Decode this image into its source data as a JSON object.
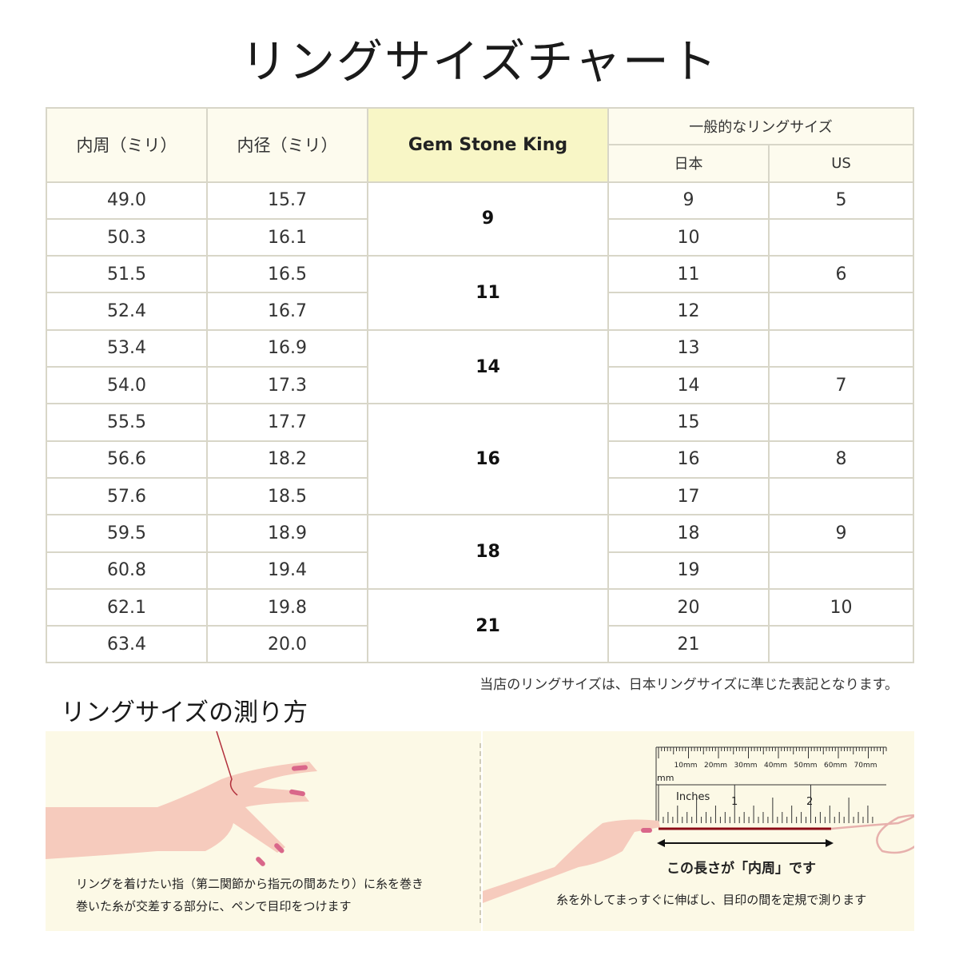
{
  "title": "リングサイズチャート",
  "table": {
    "headers": {
      "inner_circ": "内周（ミリ）",
      "inner_diam": "内径（ミリ）",
      "brand": "Gem Stone King",
      "general": "一般的なリングサイズ",
      "japan": "日本",
      "us": "US"
    },
    "rows": [
      {
        "circ": "49.0",
        "diam": "15.7",
        "jp": "9",
        "us": "5"
      },
      {
        "circ": "50.3",
        "diam": "16.1",
        "jp": "10",
        "us": ""
      },
      {
        "circ": "51.5",
        "diam": "16.5",
        "jp": "11",
        "us": "6"
      },
      {
        "circ": "52.4",
        "diam": "16.7",
        "jp": "12",
        "us": ""
      },
      {
        "circ": "53.4",
        "diam": "16.9",
        "jp": "13",
        "us": ""
      },
      {
        "circ": "54.0",
        "diam": "17.3",
        "jp": "14",
        "us": "7"
      },
      {
        "circ": "55.5",
        "diam": "17.7",
        "jp": "15",
        "us": ""
      },
      {
        "circ": "56.6",
        "diam": "18.2",
        "jp": "16",
        "us": "8"
      },
      {
        "circ": "57.6",
        "diam": "18.5",
        "jp": "17",
        "us": ""
      },
      {
        "circ": "59.5",
        "diam": "18.9",
        "jp": "18",
        "us": "9"
      },
      {
        "circ": "60.8",
        "diam": "19.4",
        "jp": "19",
        "us": ""
      },
      {
        "circ": "62.1",
        "diam": "19.8",
        "jp": "20",
        "us": "10"
      },
      {
        "circ": "63.4",
        "diam": "20.0",
        "jp": "21",
        "us": ""
      }
    ],
    "brand_groups": [
      {
        "size": "9",
        "span": 2
      },
      {
        "size": "11",
        "span": 2
      },
      {
        "size": "14",
        "span": 2
      },
      {
        "size": "16",
        "span": 3
      },
      {
        "size": "18",
        "span": 2
      },
      {
        "size": "21",
        "span": 2
      }
    ]
  },
  "note": "当店のリングサイズは、日本リングサイズに準じた表記となります。",
  "how_to": {
    "title": "リングサイズの測り方",
    "step1": [
      "リングを着けたい指（第二関節から指元の間あたり）に糸を巻き",
      "巻いた糸が交差する部分に、ペンで目印をつけます"
    ],
    "ruler": {
      "mm_labels": [
        "10mm",
        "20mm",
        "30mm",
        "40mm",
        "50mm",
        "60mm",
        "70mm"
      ],
      "mm_unit": "mm",
      "inch_unit": "Inches",
      "inch_labels": [
        "1",
        "2"
      ]
    },
    "length_label": "この長さが「内周」です",
    "step2": "糸を外してまっすぐに伸ばし、目印の間を定規で測ります"
  },
  "colors": {
    "header_bg": "#fdfbee",
    "brand_bg": "#f8f6c6",
    "border": "#d8d6c8",
    "panel_bg": "#fcf9e6",
    "thread": "#8b0a14",
    "skin": "#f6cbbd"
  }
}
